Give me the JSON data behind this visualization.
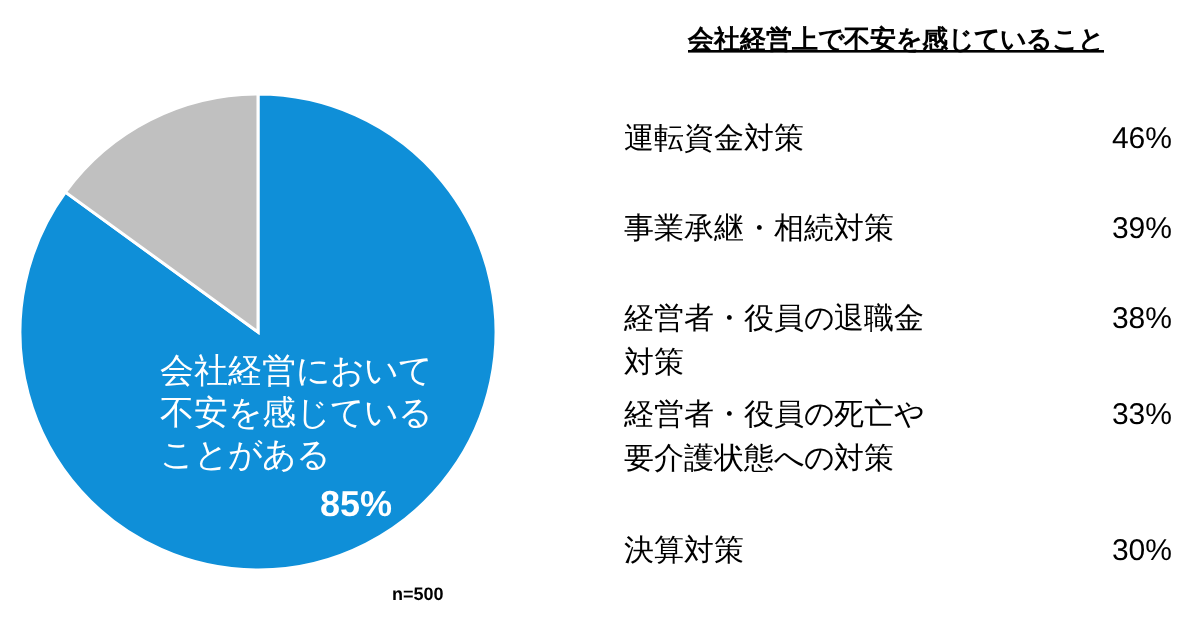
{
  "chart_data": [
    {
      "type": "pie",
      "categories": [
        "会社経営において不安を感じていることがある",
        null
      ],
      "values": [
        85,
        15
      ],
      "colors": [
        "#0f8fd8",
        "#c0c0c0"
      ],
      "value_labels": [
        "85%",
        null
      ],
      "annotations": [
        "n=500"
      ]
    },
    {
      "type": "other",
      "title": "会社経営上で不安を感じていること",
      "categories": [
        "運転資金対策",
        "事業承継・相続対策",
        "経営者・役員の退職金対策",
        "経営者・役員の死亡や要介護状態への対策",
        "決算対策"
      ],
      "value_labels": [
        "46%",
        "39%",
        "38%",
        "33%",
        "30%"
      ]
    }
  ]
}
